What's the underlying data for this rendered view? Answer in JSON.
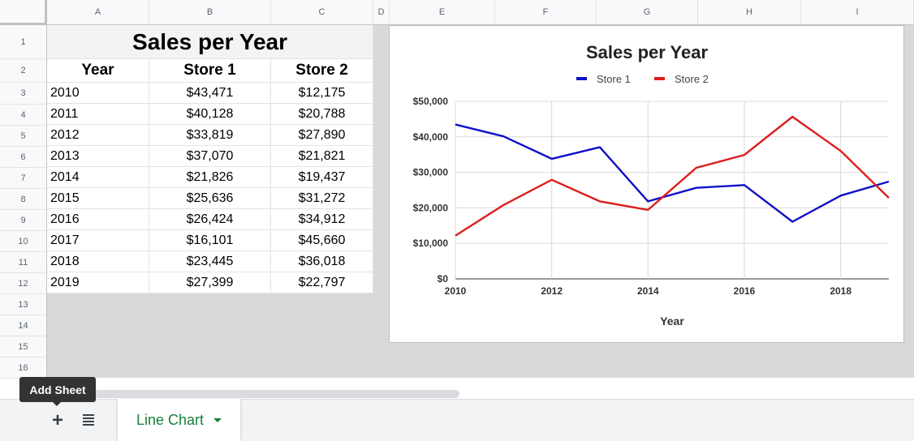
{
  "columns": [
    "A",
    "B",
    "C",
    "D",
    "E",
    "F",
    "G",
    "H",
    "I"
  ],
  "rows": [
    "1",
    "2",
    "3",
    "4",
    "5",
    "6",
    "7",
    "8",
    "9",
    "10",
    "11",
    "12",
    "13",
    "14",
    "15",
    "16"
  ],
  "sheet": {
    "title": "Sales per Year",
    "headers": [
      "Year",
      "Store 1",
      "Store 2"
    ],
    "data": [
      [
        "2010",
        "$43,471",
        "$12,175"
      ],
      [
        "2011",
        "$40,128",
        "$20,788"
      ],
      [
        "2012",
        "$33,819",
        "$27,890"
      ],
      [
        "2013",
        "$37,070",
        "$21,821"
      ],
      [
        "2014",
        "$21,826",
        "$19,437"
      ],
      [
        "2015",
        "$25,636",
        "$31,272"
      ],
      [
        "2016",
        "$26,424",
        "$34,912"
      ],
      [
        "2017",
        "$16,101",
        "$45,660"
      ],
      [
        "2018",
        "$23,445",
        "$36,018"
      ],
      [
        "2019",
        "$27,399",
        "$22,797"
      ]
    ]
  },
  "chart_data": {
    "type": "line",
    "title": "Sales per Year",
    "xlabel": "Year",
    "ylabel": "",
    "x": [
      2010,
      2011,
      2012,
      2013,
      2014,
      2015,
      2016,
      2017,
      2018,
      2019
    ],
    "xticks": [
      "2010",
      "2012",
      "2014",
      "2016",
      "2018"
    ],
    "yticks": [
      "$0",
      "$10,000",
      "$20,000",
      "$30,000",
      "$40,000",
      "$50,000"
    ],
    "ylim": [
      0,
      50000
    ],
    "xlim": [
      2010,
      2019
    ],
    "grid": true,
    "legend_position": "top",
    "series": [
      {
        "name": "Store 1",
        "color": "#1010c8",
        "values": [
          43471,
          40128,
          33819,
          37070,
          21826,
          25636,
          26424,
          16101,
          23445,
          27399
        ]
      },
      {
        "name": "Store 2",
        "color": "#dd1c1c",
        "values": [
          12175,
          20788,
          27890,
          21821,
          19437,
          31272,
          34912,
          45660,
          36018,
          22797
        ]
      }
    ]
  },
  "bottom_bar": {
    "add_sheet_tooltip": "Add Sheet",
    "add_icon_glyph": "+",
    "add_icon": "plus-icon",
    "all_sheets_icon": "list-icon",
    "tab_label": "Line Chart",
    "tab_color": "#188038"
  }
}
